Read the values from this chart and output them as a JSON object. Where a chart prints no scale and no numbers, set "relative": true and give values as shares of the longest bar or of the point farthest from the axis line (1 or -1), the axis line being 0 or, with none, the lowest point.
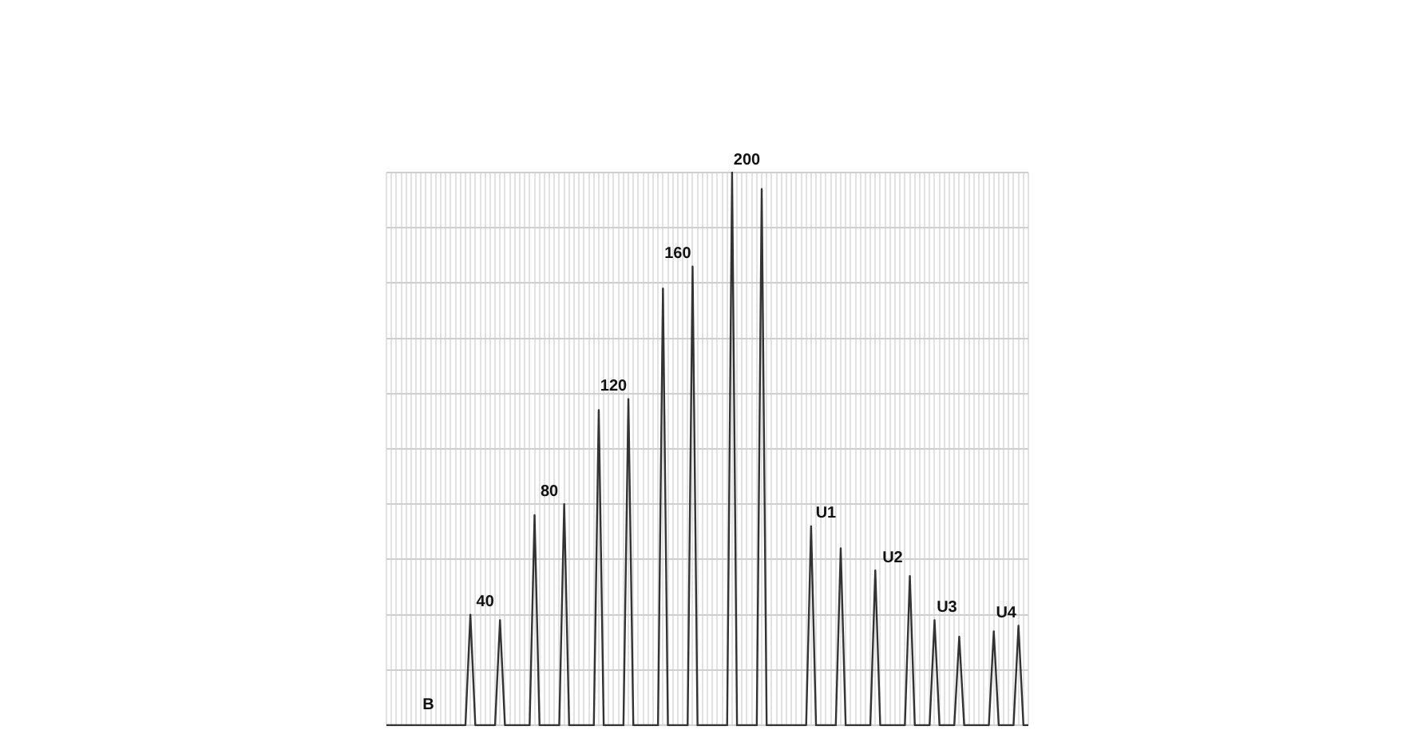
{
  "chart_data": {
    "type": "line",
    "relative": true,
    "grid": true,
    "legend": false,
    "marker": "none",
    "line_style": "solid",
    "color": "#333333",
    "categories": [
      null,
      null,
      null,
      null,
      null,
      null,
      null,
      null,
      null,
      null,
      null,
      null,
      null,
      null,
      null,
      null,
      null,
      null,
      null,
      null,
      null,
      null,
      null,
      null,
      null,
      null,
      null,
      null,
      null,
      null,
      null,
      null,
      null,
      null,
      null,
      null,
      null,
      null,
      null,
      null,
      null,
      null,
      null,
      null,
      null,
      null,
      null,
      null,
      null,
      null,
      null,
      null,
      null,
      null,
      null,
      null,
      null,
      null,
      null,
      null,
      null,
      null,
      null,
      null,
      null,
      null,
      null,
      null,
      null,
      null,
      null,
      null,
      null,
      null,
      null,
      null,
      null,
      null,
      null,
      null,
      null,
      null,
      null,
      null,
      null,
      null,
      null,
      null,
      null,
      null,
      null,
      null,
      null,
      null,
      null,
      null,
      null,
      null,
      null,
      null,
      null,
      null,
      null,
      null,
      null,
      null,
      null,
      null,
      null,
      null,
      null,
      null,
      null,
      null,
      null,
      null,
      null,
      null,
      null,
      null,
      null,
      null,
      null,
      null,
      null,
      null,
      null,
      null,
      null,
      null,
      null
    ],
    "values": [
      0,
      0,
      0,
      0,
      0,
      0,
      0,
      0,
      0,
      0,
      0,
      0,
      0,
      0,
      0,
      0,
      0,
      0.2,
      0,
      0,
      0,
      0,
      0,
      0.19,
      0,
      0,
      0,
      0,
      0,
      0,
      0.38,
      0,
      0,
      0,
      0,
      0,
      0.4,
      0,
      0,
      0,
      0,
      0,
      0,
      0.57,
      0,
      0,
      0,
      0,
      0,
      0.59,
      0,
      0,
      0,
      0,
      0,
      0,
      0.79,
      0,
      0,
      0,
      0,
      0,
      0.83,
      0,
      0,
      0,
      0,
      0,
      0,
      0,
      1,
      0,
      0,
      0,
      0,
      0,
      0.97,
      0,
      0,
      0,
      0,
      0,
      0,
      0,
      0,
      0,
      0.36,
      0,
      0,
      0,
      0,
      0,
      0.32,
      0,
      0,
      0,
      0,
      0,
      0,
      0.28,
      0,
      0,
      0,
      0,
      0,
      0,
      0.27,
      0,
      0,
      0,
      0,
      0.19,
      0,
      0,
      0,
      0,
      0.16,
      0,
      0,
      0,
      0,
      0,
      0,
      0.17,
      0,
      0,
      0,
      0,
      0.18,
      0,
      0
    ],
    "annotations": [
      "B",
      "40",
      "80",
      "120",
      "160",
      "200",
      "U1",
      "U2",
      "U3",
      "U4"
    ]
  }
}
